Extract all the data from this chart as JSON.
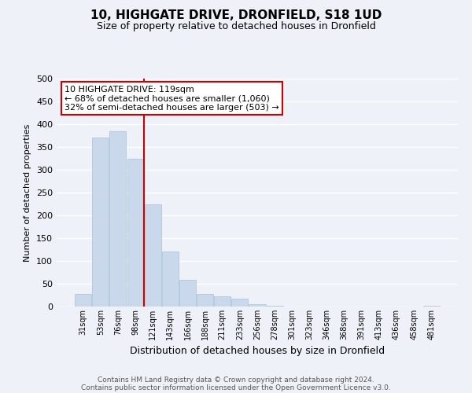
{
  "title": "10, HIGHGATE DRIVE, DRONFIELD, S18 1UD",
  "subtitle": "Size of property relative to detached houses in Dronfield",
  "xlabel": "Distribution of detached houses by size in Dronfield",
  "ylabel": "Number of detached properties",
  "bar_color": "#c9d9eb",
  "bar_edge_color": "#a8c0d6",
  "background_color": "#eef2f8",
  "grid_color": "#ffffff",
  "categories": [
    "31sqm",
    "53sqm",
    "76sqm",
    "98sqm",
    "121sqm",
    "143sqm",
    "166sqm",
    "188sqm",
    "211sqm",
    "233sqm",
    "256sqm",
    "278sqm",
    "301sqm",
    "323sqm",
    "346sqm",
    "368sqm",
    "391sqm",
    "413sqm",
    "436sqm",
    "458sqm",
    "481sqm"
  ],
  "values": [
    27,
    370,
    385,
    325,
    225,
    121,
    58,
    27,
    22,
    17,
    5,
    1,
    0,
    0,
    0,
    0,
    0,
    0,
    0,
    0,
    2
  ],
  "vline_color": "#cc0000",
  "vline_index": 3.5,
  "annotation_text": "10 HIGHGATE DRIVE: 119sqm\n← 68% of detached houses are smaller (1,060)\n32% of semi-detached houses are larger (503) →",
  "annotation_box_color": "#ffffff",
  "annotation_box_edge_color": "#cc0000",
  "ylim": [
    0,
    500
  ],
  "yticks": [
    0,
    50,
    100,
    150,
    200,
    250,
    300,
    350,
    400,
    450,
    500
  ],
  "footer_line1": "Contains HM Land Registry data © Crown copyright and database right 2024.",
  "footer_line2": "Contains public sector information licensed under the Open Government Licence v3.0."
}
